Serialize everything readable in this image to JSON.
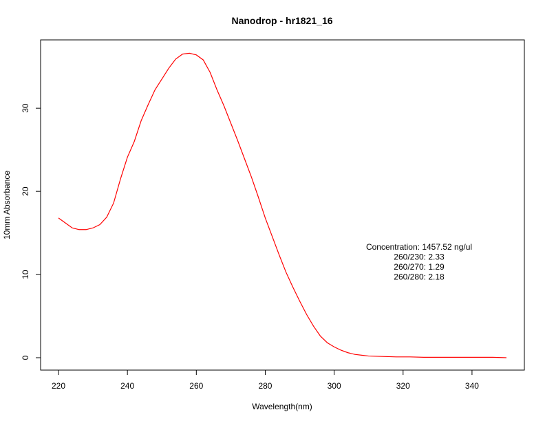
{
  "chart_data": {
    "type": "line",
    "title": "Nanodrop - hr1821_16",
    "xlabel": "Wavelength(nm)",
    "ylabel": "10mm Absorbance",
    "xlim": [
      220,
      350
    ],
    "ylim": [
      0,
      36.8
    ],
    "x_ticks": [
      220,
      240,
      260,
      280,
      300,
      320,
      340
    ],
    "y_ticks": [
      0,
      10,
      20,
      30
    ],
    "grid": false,
    "line_color": "#ff0000",
    "series": [
      {
        "x": [
          220,
          222,
          224,
          226,
          228,
          230,
          232,
          234,
          236,
          238,
          240,
          242,
          244,
          246,
          248,
          250,
          252,
          254,
          256,
          258,
          260,
          262,
          264,
          266,
          268,
          270,
          272,
          274,
          276,
          278,
          280,
          282,
          284,
          286,
          288,
          290,
          292,
          294,
          296,
          298,
          300,
          302,
          304,
          306,
          308,
          310,
          314,
          318,
          322,
          326,
          330,
          334,
          338,
          342,
          346,
          350
        ],
        "y": [
          16.8,
          16.2,
          15.6,
          15.4,
          15.4,
          15.6,
          16.0,
          16.9,
          18.6,
          21.5,
          24.1,
          26.0,
          28.5,
          30.4,
          32.2,
          33.5,
          34.8,
          35.9,
          36.5,
          36.6,
          36.4,
          35.8,
          34.3,
          32.2,
          30.3,
          28.2,
          26.1,
          23.9,
          21.7,
          19.3,
          16.8,
          14.6,
          12.4,
          10.3,
          8.5,
          6.8,
          5.2,
          3.8,
          2.6,
          1.8,
          1.3,
          0.9,
          0.6,
          0.4,
          0.3,
          0.2,
          0.15,
          0.1,
          0.1,
          0.05,
          0.05,
          0.05,
          0.05,
          0.05,
          0.05,
          0.0
        ]
      }
    ],
    "annotations": [
      "Concentration: 1457.52 ng/ul",
      "260/230: 2.33",
      "260/270: 1.29",
      "260/280: 2.18"
    ]
  }
}
